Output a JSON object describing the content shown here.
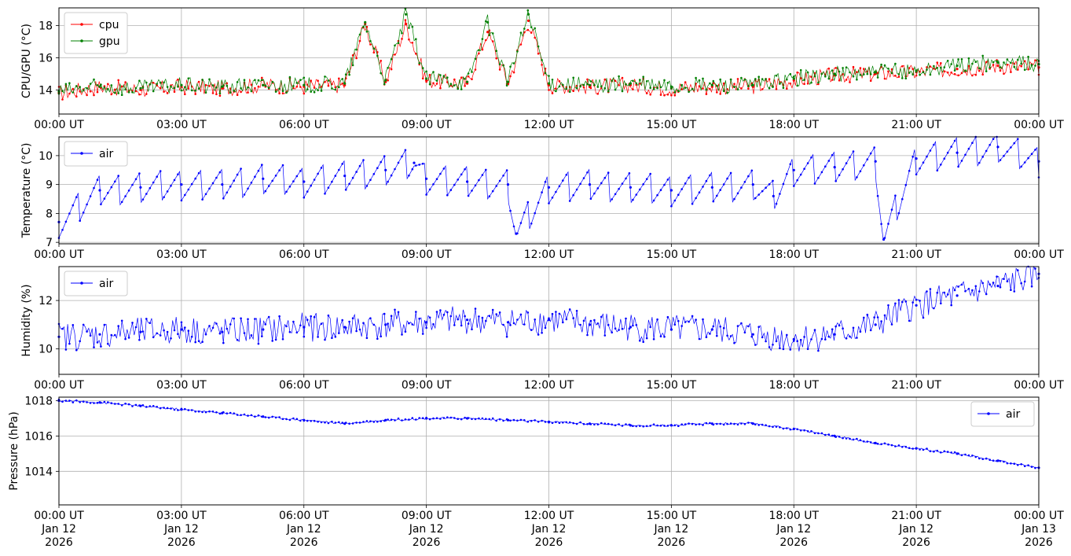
{
  "x_tick_labels": [
    "00:00 UT",
    "03:00 UT",
    "06:00 UT",
    "09:00 UT",
    "12:00 UT",
    "15:00 UT",
    "18:00 UT",
    "21:00 UT",
    "00:00 UT"
  ],
  "x_date_labels": [
    [
      "Jan 12",
      "2026"
    ],
    [
      "Jan 12",
      "2026"
    ],
    [
      "Jan 12",
      "2026"
    ],
    [
      "Jan 12",
      "2026"
    ],
    [
      "Jan 12",
      "2026"
    ],
    [
      "Jan 12",
      "2026"
    ],
    [
      "Jan 12",
      "2026"
    ],
    [
      "Jan 12",
      "2026"
    ],
    [
      "Jan 13",
      "2026"
    ]
  ],
  "chart_data": [
    {
      "type": "line",
      "ylabel": "CPU/GPU (°C)",
      "xlim": [
        "2026-01-12T00:00Z",
        "2026-01-13T00:00Z"
      ],
      "ylim": [
        12.5,
        19.1
      ],
      "yticks": [
        14,
        16,
        18
      ],
      "grid": true,
      "legend_position": "upper-left",
      "series": [
        {
          "name": "cpu",
          "color": "#ff0000",
          "x_hours": [
            0,
            1,
            2,
            3,
            4,
            5,
            6,
            7,
            7.5,
            8,
            8.5,
            9,
            10,
            10.5,
            11,
            11.5,
            12,
            13,
            14,
            15,
            16,
            17,
            18,
            19,
            20,
            21,
            22,
            23,
            24
          ],
          "values": [
            13.8,
            14.2,
            14.0,
            14.2,
            14.1,
            14.3,
            14.2,
            14.3,
            18.1,
            14.5,
            18.1,
            14.6,
            14.4,
            17.6,
            14.4,
            18.3,
            14.3,
            14.2,
            14.3,
            14.1,
            14.2,
            14.2,
            14.6,
            14.9,
            15.0,
            15.1,
            15.3,
            15.5,
            15.4
          ]
        },
        {
          "name": "gpu",
          "color": "#008000",
          "x_hours": [
            0,
            1,
            2,
            3,
            4,
            5,
            6,
            7,
            7.5,
            8,
            8.5,
            9,
            10,
            10.5,
            11,
            11.5,
            12,
            13,
            14,
            15,
            16,
            17,
            18,
            19,
            20,
            21,
            22,
            23,
            24
          ],
          "values": [
            13.9,
            14.2,
            14.1,
            14.3,
            14.2,
            14.3,
            14.3,
            14.4,
            18.2,
            14.6,
            18.7,
            14.7,
            14.5,
            18.2,
            14.5,
            18.7,
            14.4,
            14.3,
            14.4,
            14.2,
            14.3,
            14.3,
            14.7,
            15.0,
            15.1,
            15.2,
            15.5,
            15.7,
            15.6
          ]
        }
      ]
    },
    {
      "type": "line",
      "ylabel": "Temperature (°C)",
      "xlim": [
        "2026-01-12T00:00Z",
        "2026-01-13T00:00Z"
      ],
      "ylim": [
        6.95,
        10.65
      ],
      "yticks": [
        7,
        8,
        9,
        10
      ],
      "grid": true,
      "legend_position": "upper-left",
      "series": [
        {
          "name": "air",
          "color": "#0000ff",
          "x_hours": [
            0,
            1,
            2,
            3,
            4,
            5,
            6,
            7,
            8,
            8.7,
            9,
            10,
            11,
            11.2,
            12,
            13,
            14,
            15,
            16,
            17,
            17.5,
            18,
            19,
            20,
            20.2,
            21,
            22,
            23,
            24
          ],
          "values": [
            7.7,
            8.8,
            8.9,
            9.0,
            9.0,
            9.2,
            9.1,
            9.3,
            9.5,
            9.75,
            9.2,
            9.1,
            9.0,
            7.3,
            8.9,
            9.0,
            8.9,
            8.8,
            8.9,
            9.0,
            8.6,
            9.5,
            9.6,
            9.8,
            7.1,
            9.9,
            10.1,
            10.3,
            9.8
          ]
        }
      ]
    },
    {
      "type": "line",
      "ylabel": "Humidity (%)",
      "xlim": [
        "2026-01-12T00:00Z",
        "2026-01-13T00:00Z"
      ],
      "ylim": [
        8.95,
        13.4
      ],
      "yticks": [
        10,
        12
      ],
      "grid": true,
      "legend_position": "upper-left",
      "series": [
        {
          "name": "air",
          "color": "#0000ff",
          "x_hours": [
            0,
            1,
            2,
            3,
            4,
            5,
            6,
            7,
            8,
            9,
            10,
            11,
            12,
            13,
            14,
            15,
            16,
            17,
            18,
            19,
            20,
            21,
            22,
            23,
            24
          ],
          "values": [
            10.5,
            10.6,
            10.7,
            10.8,
            10.7,
            10.8,
            10.9,
            10.9,
            11.0,
            11.1,
            11.2,
            11.1,
            11.2,
            11.0,
            10.9,
            10.8,
            10.8,
            10.6,
            10.4,
            10.6,
            11.0,
            11.8,
            12.2,
            12.6,
            13.1
          ]
        }
      ]
    },
    {
      "type": "line",
      "ylabel": "Pressure (hPa)",
      "xlim": [
        "2026-01-12T00:00Z",
        "2026-01-13T00:00Z"
      ],
      "ylim": [
        1012.1,
        1018.2
      ],
      "yticks": [
        1014,
        1016,
        1018
      ],
      "grid": true,
      "legend_position": "upper-right",
      "series": [
        {
          "name": "air",
          "color": "#0000ff",
          "x_hours": [
            0,
            1,
            2,
            3,
            4,
            5,
            6,
            7,
            8,
            9,
            10,
            11,
            12,
            13,
            14,
            15,
            16,
            17,
            18,
            19,
            20,
            21,
            22,
            23,
            24
          ],
          "values": [
            1018.0,
            1017.9,
            1017.7,
            1017.5,
            1017.3,
            1017.1,
            1016.9,
            1016.7,
            1016.9,
            1017.0,
            1017.0,
            1016.9,
            1016.8,
            1016.7,
            1016.6,
            1016.6,
            1016.7,
            1016.7,
            1016.4,
            1016.0,
            1015.6,
            1015.3,
            1015.0,
            1014.6,
            1014.2
          ]
        }
      ]
    }
  ]
}
